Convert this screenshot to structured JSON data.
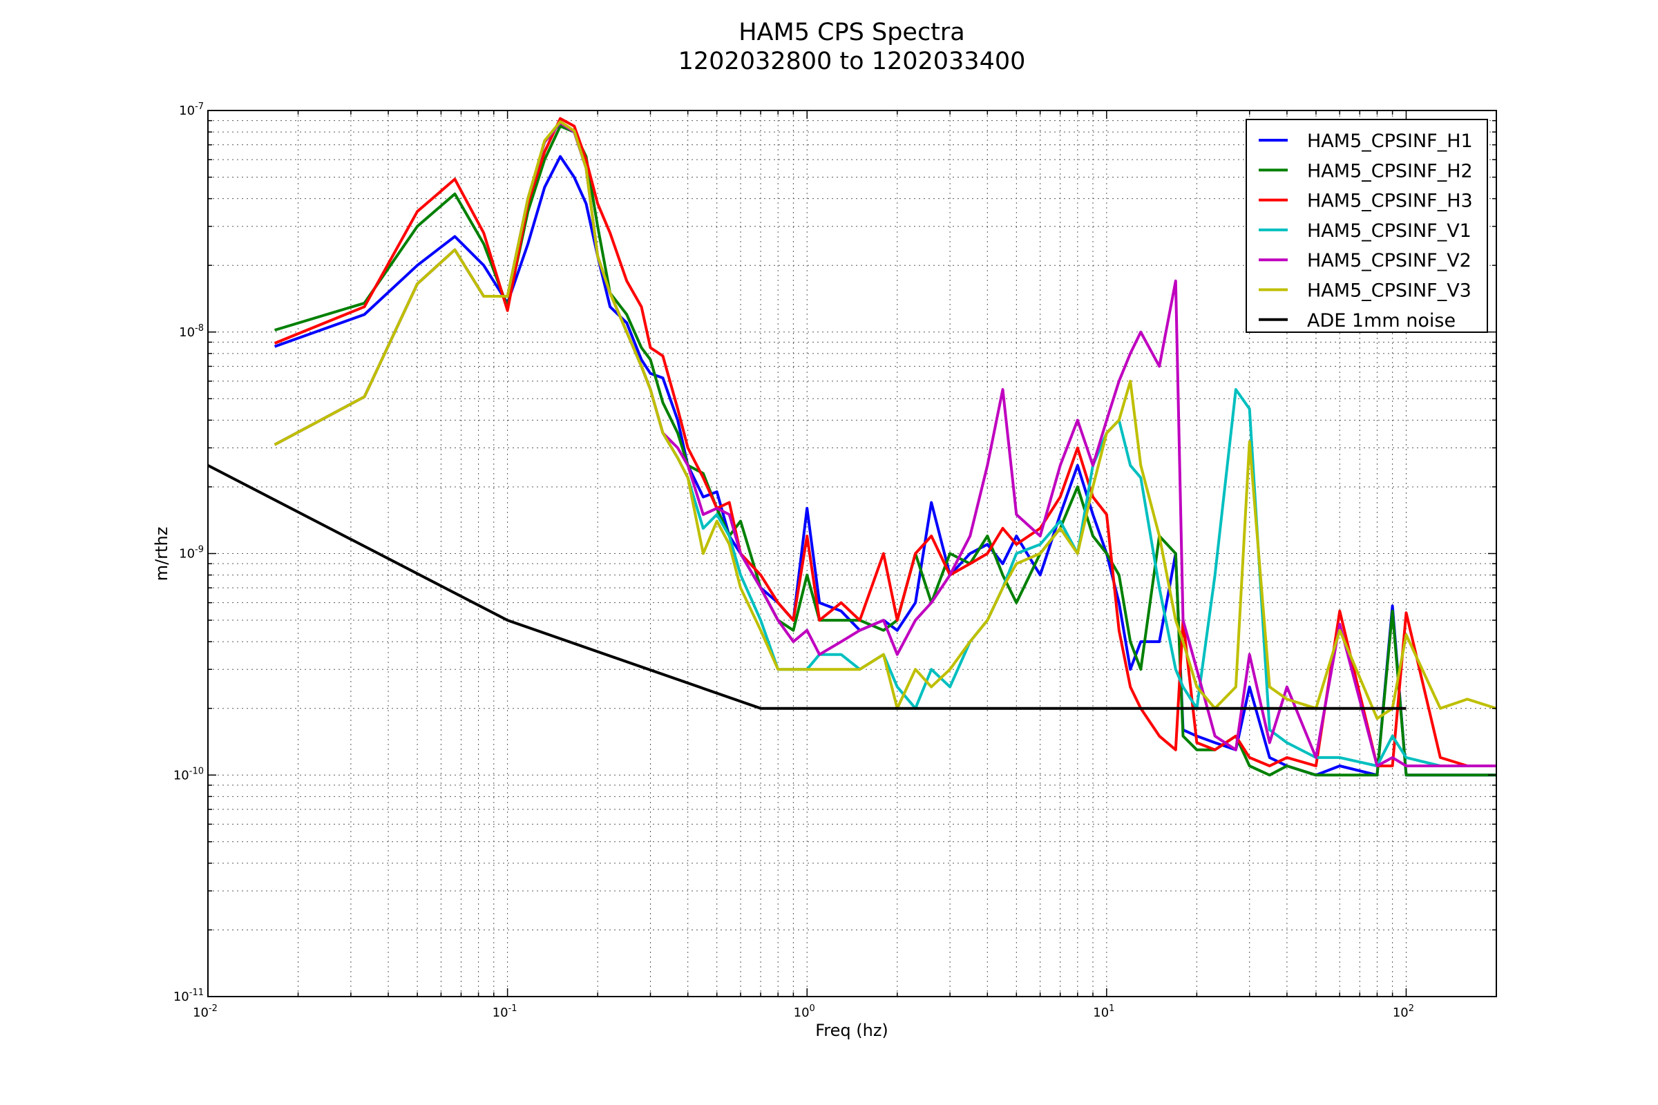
{
  "chart_data": {
    "type": "line",
    "title": "HAM5 CPS Spectra",
    "subtitle": "1202032800 to 1202033400",
    "xlabel": "Freq (hz)",
    "ylabel": "m/rthz",
    "xscale": "log",
    "yscale": "log",
    "xlim": [
      0.01,
      200
    ],
    "ylim": [
      1e-11,
      1e-07
    ],
    "grid": true,
    "legend_position": "top-right",
    "x_ticks": [
      {
        "base": "10",
        "exp": "-2",
        "value": 0.01
      },
      {
        "base": "10",
        "exp": "-1",
        "value": 0.1
      },
      {
        "base": "10",
        "exp": "0",
        "value": 1
      },
      {
        "base": "10",
        "exp": "1",
        "value": 10
      },
      {
        "base": "10",
        "exp": "2",
        "value": 100
      }
    ],
    "y_ticks": [
      {
        "base": "10",
        "exp": "-7",
        "value": 1e-07
      },
      {
        "base": "10",
        "exp": "-8",
        "value": 1e-08
      },
      {
        "base": "10",
        "exp": "-9",
        "value": 1e-09
      },
      {
        "base": "10",
        "exp": "-10",
        "value": 1e-10
      },
      {
        "base": "10",
        "exp": "-11",
        "value": 1e-11
      }
    ],
    "x": [
      0.0167,
      0.0333,
      0.05,
      0.0667,
      0.0833,
      0.1,
      0.117,
      0.133,
      0.15,
      0.167,
      0.183,
      0.2,
      0.22,
      0.25,
      0.28,
      0.3,
      0.33,
      0.37,
      0.4,
      0.45,
      0.5,
      0.55,
      0.6,
      0.7,
      0.8,
      0.9,
      1.0,
      1.1,
      1.3,
      1.5,
      1.8,
      2.0,
      2.3,
      2.6,
      3.0,
      3.5,
      4.0,
      4.5,
      5,
      6,
      7,
      8,
      9,
      10,
      11,
      12,
      13,
      15,
      17,
      18,
      20,
      23,
      27,
      30,
      35,
      40,
      50,
      60,
      80,
      90,
      100,
      130,
      160,
      200
    ],
    "series": [
      {
        "name": "HAM5_CPSINF_H1",
        "color": "#0000ff",
        "values": [
          8.6e-09,
          1.2e-08,
          2e-08,
          2.7e-08,
          2e-08,
          1.35e-08,
          2.5e-08,
          4.5e-08,
          6.2e-08,
          5e-08,
          3.8e-08,
          2.2e-08,
          1.3e-08,
          1.1e-08,
          7.5e-09,
          6.5e-09,
          6.2e-09,
          4e-09,
          2.5e-09,
          1.8e-09,
          1.9e-09,
          1.2e-09,
          1e-09,
          7e-10,
          6e-10,
          5e-10,
          1.6e-09,
          6e-10,
          5.5e-10,
          4.5e-10,
          5e-10,
          4.5e-10,
          6e-10,
          1.7e-09,
          8e-10,
          1e-09,
          1.1e-09,
          9e-10,
          1.2e-09,
          8e-10,
          1.5e-09,
          2.5e-09,
          1.5e-09,
          1e-09,
          6e-10,
          3e-10,
          4e-10,
          4e-10,
          1e-09,
          1.6e-10,
          1.5e-10,
          1.4e-10,
          1.3e-10,
          2.5e-10,
          1.2e-10,
          1.1e-10,
          1e-10,
          1.1e-10,
          1e-10,
          5.8e-10,
          1e-10,
          1e-10,
          1e-10,
          1e-10
        ]
      },
      {
        "name": "HAM5_CPSINF_H2",
        "color": "#008000",
        "values": [
          1.02e-08,
          1.35e-08,
          3e-08,
          4.2e-08,
          2.5e-08,
          1.3e-08,
          3.5e-08,
          6e-08,
          8.5e-08,
          8e-08,
          6.2e-08,
          3e-08,
          1.5e-08,
          1.2e-08,
          8.5e-09,
          7.5e-09,
          4.8e-09,
          3.5e-09,
          2.5e-09,
          2.3e-09,
          1.6e-09,
          1.2e-09,
          1.4e-09,
          7e-10,
          5e-10,
          4.5e-10,
          8e-10,
          5e-10,
          5e-10,
          5e-10,
          4.5e-10,
          5e-10,
          1e-09,
          6e-10,
          1e-09,
          9e-10,
          1.2e-09,
          8e-10,
          6e-10,
          1e-09,
          1.3e-09,
          2e-09,
          1.2e-09,
          1e-09,
          8e-10,
          4e-10,
          3e-10,
          1.2e-09,
          1e-09,
          1.5e-10,
          1.3e-10,
          1.3e-10,
          1.5e-10,
          1.1e-10,
          1e-10,
          1.1e-10,
          1e-10,
          1e-10,
          1e-10,
          5.5e-10,
          1e-10,
          1e-10,
          1e-10,
          1e-10
        ]
      },
      {
        "name": "HAM5_CPSINF_H3",
        "color": "#ff0000",
        "values": [
          8.9e-09,
          1.3e-08,
          3.5e-08,
          4.9e-08,
          2.8e-08,
          1.25e-08,
          3.8e-08,
          6.5e-08,
          9.2e-08,
          8.5e-08,
          6e-08,
          3.8e-08,
          2.8e-08,
          1.7e-08,
          1.3e-08,
          8.5e-09,
          7.8e-09,
          4.5e-09,
          3e-09,
          2.2e-09,
          1.6e-09,
          1.7e-09,
          1e-09,
          8e-10,
          6e-10,
          5e-10,
          1.2e-09,
          5e-10,
          6e-10,
          5e-10,
          1e-09,
          5e-10,
          1e-09,
          1.2e-09,
          8e-10,
          9e-10,
          1e-09,
          1.3e-09,
          1.1e-09,
          1.3e-09,
          1.8e-09,
          3e-09,
          1.8e-09,
          1.5e-09,
          4.5e-10,
          2.5e-10,
          2e-10,
          1.5e-10,
          1.3e-10,
          5e-10,
          1.4e-10,
          1.3e-10,
          1.5e-10,
          1.2e-10,
          1.1e-10,
          1.2e-10,
          1.1e-10,
          5.5e-10,
          1.1e-10,
          1.1e-10,
          5.4e-10,
          1.2e-10,
          1.1e-10,
          1.1e-10
        ]
      },
      {
        "name": "HAM5_CPSINF_V1",
        "color": "#00bfbf",
        "values": [
          3.1e-09,
          5.1e-09,
          1.65e-08,
          2.35e-08,
          1.45e-08,
          1.45e-08,
          4e-08,
          7.2e-08,
          8.8e-08,
          8e-08,
          5.5e-08,
          2.2e-08,
          1.5e-08,
          1e-08,
          7e-09,
          5.5e-09,
          3.5e-09,
          2.7e-09,
          2.2e-09,
          1.3e-09,
          1.5e-09,
          1.2e-09,
          8e-10,
          5e-10,
          3e-10,
          3e-10,
          3e-10,
          3.5e-10,
          3.5e-10,
          3e-10,
          3.5e-10,
          2.5e-10,
          2e-10,
          3e-10,
          2.5e-10,
          4e-10,
          5e-10,
          7e-10,
          1e-09,
          1.1e-09,
          1.4e-09,
          1e-09,
          2.5e-09,
          3.5e-09,
          4e-09,
          2.5e-09,
          2.2e-09,
          7e-10,
          3e-10,
          2.5e-10,
          2e-10,
          8e-10,
          5.5e-09,
          4.5e-09,
          1.6e-10,
          1.4e-10,
          1.2e-10,
          1.2e-10,
          1.1e-10,
          1.5e-10,
          1.2e-10,
          1.1e-10,
          1.1e-10,
          1.1e-10
        ]
      },
      {
        "name": "HAM5_CPSINF_V2",
        "color": "#bf00bf",
        "values": [
          3.1e-09,
          5.1e-09,
          1.65e-08,
          2.35e-08,
          1.45e-08,
          1.45e-08,
          4e-08,
          7.2e-08,
          8.8e-08,
          8e-08,
          5.5e-08,
          2.2e-08,
          1.5e-08,
          1e-08,
          7e-09,
          5.5e-09,
          3.5e-09,
          3e-09,
          2.5e-09,
          1.5e-09,
          1.6e-09,
          1.5e-09,
          1e-09,
          7e-10,
          5e-10,
          4e-10,
          4.5e-10,
          3.5e-10,
          4e-10,
          4.5e-10,
          5e-10,
          3.5e-10,
          5e-10,
          6e-10,
          8e-10,
          1.2e-09,
          2.5e-09,
          5.5e-09,
          1.5e-09,
          1.2e-09,
          2.5e-09,
          4e-09,
          2.5e-09,
          4e-09,
          6e-09,
          8e-09,
          1e-08,
          7e-09,
          1.7e-08,
          5e-10,
          3e-10,
          1.5e-10,
          1.3e-10,
          3.5e-10,
          1.4e-10,
          2.5e-10,
          1.2e-10,
          4.8e-10,
          1.1e-10,
          1.2e-10,
          1.1e-10,
          1.1e-10,
          1.1e-10,
          1.1e-10
        ]
      },
      {
        "name": "HAM5_CPSINF_V3",
        "color": "#bfbf00",
        "values": [
          3.1e-09,
          5.1e-09,
          1.65e-08,
          2.35e-08,
          1.45e-08,
          1.45e-08,
          4e-08,
          7.3e-08,
          8.9e-08,
          8.1e-08,
          5.5e-08,
          2.2e-08,
          1.5e-08,
          1e-08,
          7e-09,
          5.5e-09,
          3.5e-09,
          2.7e-09,
          2.2e-09,
          1e-09,
          1.4e-09,
          1.1e-09,
          7e-10,
          4.5e-10,
          3e-10,
          3e-10,
          3e-10,
          3e-10,
          3e-10,
          3e-10,
          3.5e-10,
          2e-10,
          3e-10,
          2.5e-10,
          3e-10,
          4e-10,
          5e-10,
          7e-10,
          9e-10,
          1e-09,
          1.3e-09,
          1e-09,
          2e-09,
          3.5e-09,
          4e-09,
          6e-09,
          2.5e-09,
          1.2e-09,
          5e-10,
          4e-10,
          2.5e-10,
          2e-10,
          2.5e-10,
          3.2e-09,
          2.5e-10,
          2.2e-10,
          2e-10,
          4.5e-10,
          1.8e-10,
          2e-10,
          4.3e-10,
          2e-10,
          2.2e-10,
          2e-10
        ]
      },
      {
        "name": "ADE 1mm noise",
        "color": "#000000",
        "x": [
          0.01,
          0.1,
          0.7,
          100
        ],
        "values": [
          2.5e-09,
          5e-10,
          2e-10,
          2e-10
        ]
      }
    ]
  }
}
